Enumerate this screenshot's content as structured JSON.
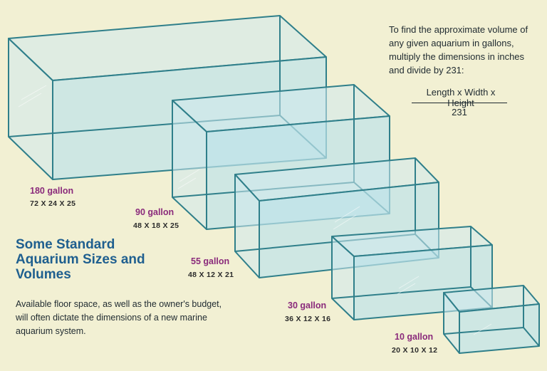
{
  "intro_text": "To find the approximate volume of any given aquarium in gallons, multiply the dimensions in inches and divide by 231:",
  "formula": {
    "numerator": "Length x Width x Height",
    "denominator": "231"
  },
  "heading": "Some Standard Aquarium Sizes and Volumes",
  "description": "Available floor space, as well as the owner's budget, will often dictate the dimensions of a new marine aquarium system.",
  "tanks": [
    {
      "gallons": "180 gallon",
      "dims": "72 X 24 X 25"
    },
    {
      "gallons": "90 gallon",
      "dims": "48 X 18 X 25"
    },
    {
      "gallons": "55 gallon",
      "dims": "48 X 12 X 21"
    },
    {
      "gallons": "30 gallon",
      "dims": "36 X 12 X 16"
    },
    {
      "gallons": "10 gallon",
      "dims": "20 X 10 X 12"
    }
  ],
  "colors": {
    "background": "#f2f0d3",
    "tank_line": "#2f7f8a",
    "tank_fill": "#cfe9ee",
    "gallon_label": "#8a2a7b",
    "heading": "#1f5f8f"
  }
}
